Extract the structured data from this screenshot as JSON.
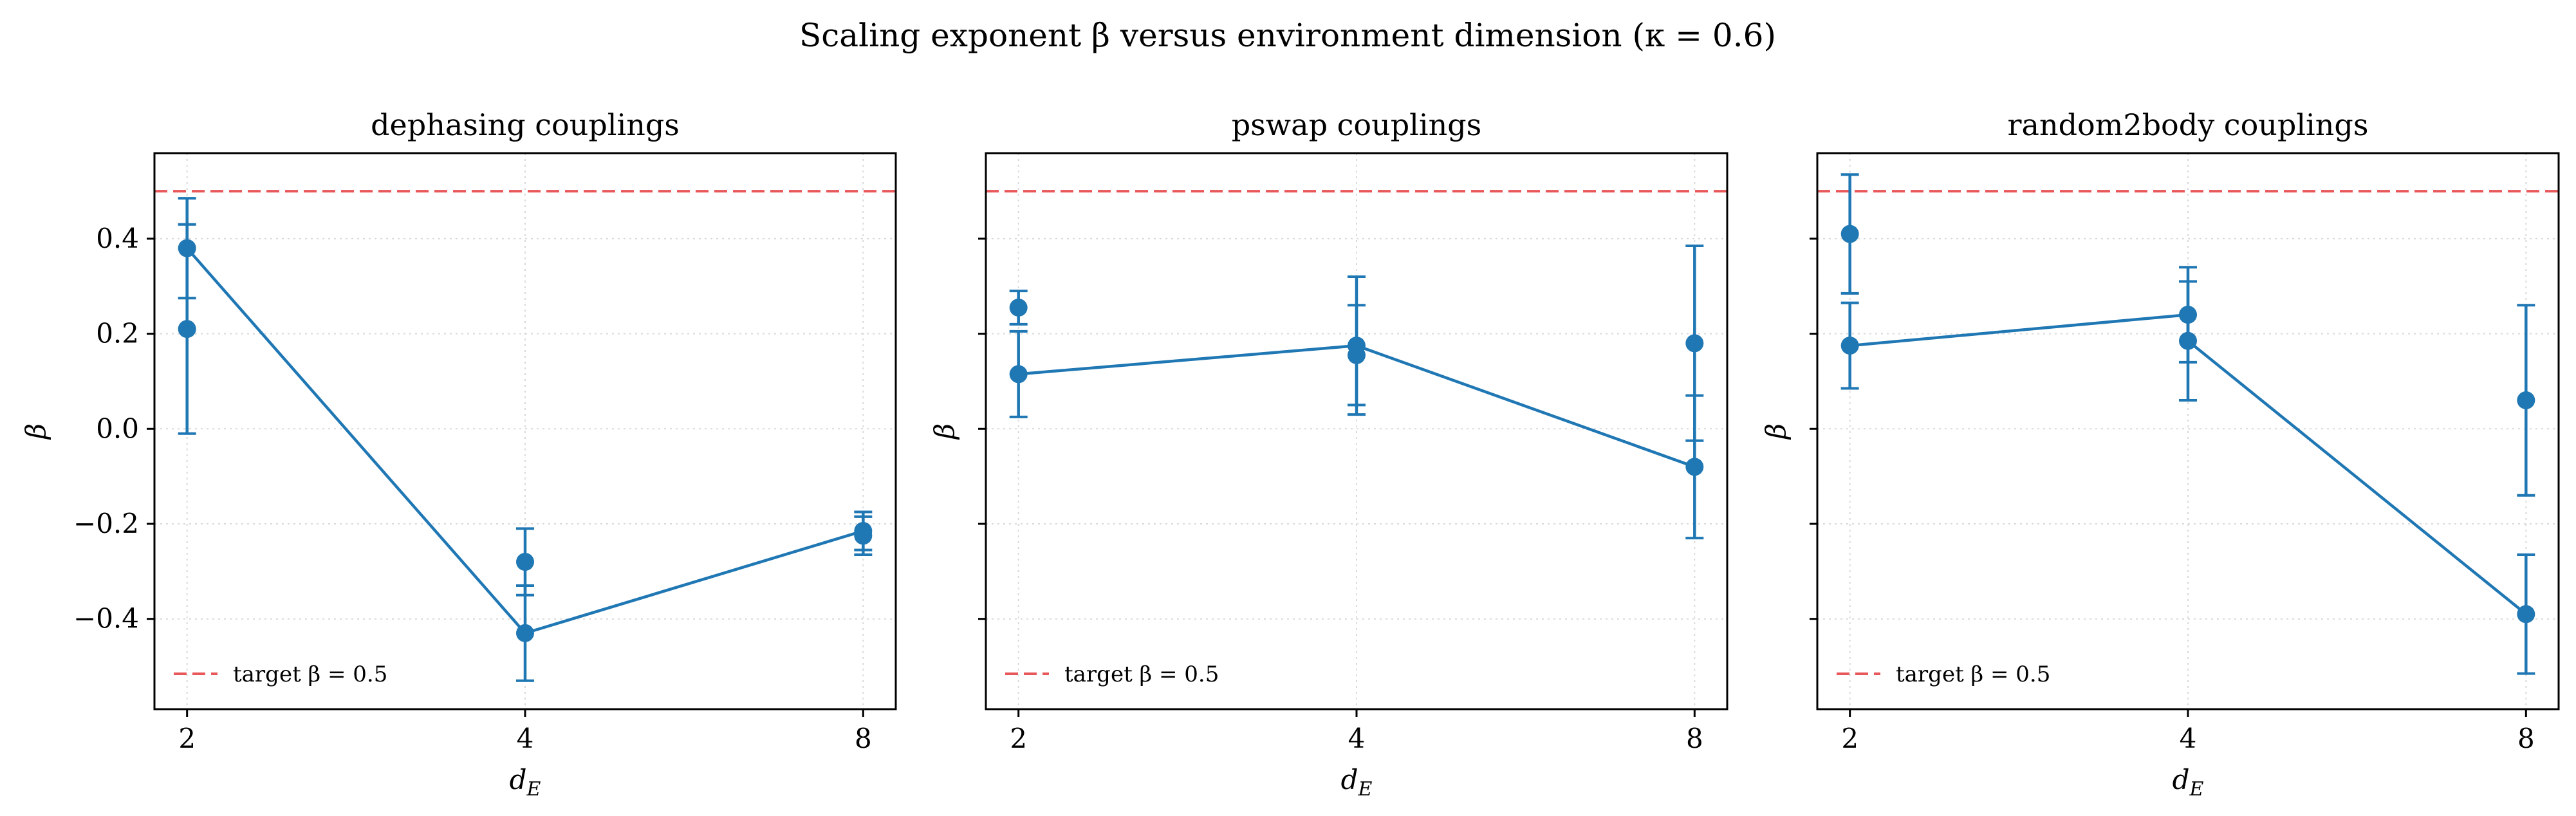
{
  "figure": {
    "suptitle": "Scaling exponent β versus environment dimension (κ = 0.6)"
  },
  "colors": {
    "series": "#1f77b4",
    "target": "#e8585a",
    "grid": "#d9d9d9",
    "axis": "#000000"
  },
  "chart_data": [
    {
      "type": "line",
      "title": "dephasing couplings",
      "xlabel": "d_E",
      "ylabel": "β",
      "x_scale": "log2",
      "x_ticks": [
        2,
        4,
        8
      ],
      "y_ticks": [
        -0.4,
        -0.2,
        0.0,
        0.2,
        0.4
      ],
      "ylim": [
        -0.59,
        0.58
      ],
      "grid": true,
      "legend": {
        "position": "lower-left",
        "label": "target β = 0.5"
      },
      "reference_line": {
        "y": 0.5,
        "label": "target β = 0.5",
        "style": "dashed"
      },
      "line_points": [
        {
          "x": 2,
          "y": 0.38
        },
        {
          "x": 4,
          "y": -0.43
        },
        {
          "x": 8,
          "y": -0.215
        }
      ],
      "points": [
        {
          "x": 2,
          "y": 0.38,
          "err": 0.105
        },
        {
          "x": 2,
          "y": 0.21,
          "err": 0.22
        },
        {
          "x": 4,
          "y": -0.28,
          "err": 0.07
        },
        {
          "x": 4,
          "y": -0.43,
          "err": 0.1
        },
        {
          "x": 8,
          "y": -0.215,
          "err": 0.04
        },
        {
          "x": 8,
          "y": -0.225,
          "err": 0.04
        }
      ]
    },
    {
      "type": "line",
      "title": "pswap couplings",
      "xlabel": "d_E",
      "ylabel": "β",
      "x_scale": "log2",
      "x_ticks": [
        2,
        4,
        8
      ],
      "y_ticks": [
        -0.4,
        -0.2,
        0.0,
        0.2,
        0.4
      ],
      "ylim": [
        -0.59,
        0.58
      ],
      "grid": true,
      "legend": {
        "position": "lower-left",
        "label": "target β = 0.5"
      },
      "reference_line": {
        "y": 0.5,
        "label": "target β = 0.5",
        "style": "dashed"
      },
      "line_points": [
        {
          "x": 2,
          "y": 0.115
        },
        {
          "x": 4,
          "y": 0.175
        },
        {
          "x": 8,
          "y": -0.08
        }
      ],
      "points": [
        {
          "x": 2,
          "y": 0.255,
          "err": 0.035
        },
        {
          "x": 2,
          "y": 0.115,
          "err": 0.09
        },
        {
          "x": 4,
          "y": 0.175,
          "err": 0.145
        },
        {
          "x": 4,
          "y": 0.155,
          "err": 0.105
        },
        {
          "x": 8,
          "y": 0.18,
          "err": 0.205
        },
        {
          "x": 8,
          "y": -0.08,
          "err": 0.15
        }
      ]
    },
    {
      "type": "line",
      "title": "random2body couplings",
      "xlabel": "d_E",
      "ylabel": "β",
      "x_scale": "log2",
      "x_ticks": [
        2,
        4,
        8
      ],
      "y_ticks": [
        -0.4,
        -0.2,
        0.0,
        0.2,
        0.4
      ],
      "ylim": [
        -0.59,
        0.58
      ],
      "grid": true,
      "legend": {
        "position": "lower-left",
        "label": "target β = 0.5"
      },
      "reference_line": {
        "y": 0.5,
        "label": "target β = 0.5",
        "style": "dashed"
      },
      "line_points": [
        {
          "x": 2,
          "y": 0.175
        },
        {
          "x": 4,
          "y": 0.24
        },
        {
          "x": 4,
          "y": 0.185
        },
        {
          "x": 8,
          "y": -0.39
        }
      ],
      "points": [
        {
          "x": 2,
          "y": 0.41,
          "err": 0.125
        },
        {
          "x": 2,
          "y": 0.175,
          "err": 0.09
        },
        {
          "x": 4,
          "y": 0.24,
          "err": 0.1
        },
        {
          "x": 4,
          "y": 0.185,
          "err": 0.125
        },
        {
          "x": 8,
          "y": 0.06,
          "err": 0.2
        },
        {
          "x": 8,
          "y": -0.39,
          "err": 0.125
        }
      ]
    }
  ]
}
